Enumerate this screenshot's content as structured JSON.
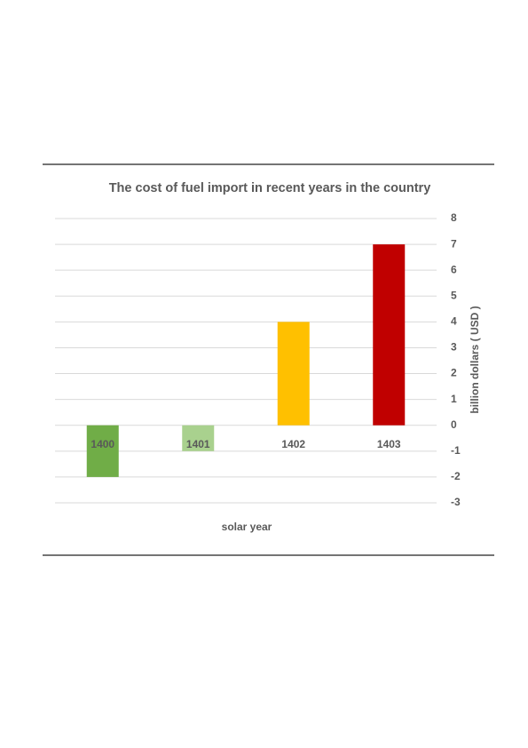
{
  "chart_data": {
    "type": "bar",
    "title": "The cost of fuel import in recent years in the country",
    "categories": [
      "1400",
      "1401",
      "1402",
      "1403"
    ],
    "values": [
      -2,
      -1,
      4,
      7
    ],
    "colors": [
      "#70ad47",
      "#a9d18e",
      "#ffc000",
      "#c00000"
    ],
    "x_label": "solar year",
    "y_label": "billion dollars ( USD )",
    "ylim": [
      -3,
      8
    ],
    "yticks": [
      -3,
      -2,
      -1,
      0,
      1,
      2,
      3,
      4,
      5,
      6,
      7,
      8
    ],
    "grid": true
  }
}
